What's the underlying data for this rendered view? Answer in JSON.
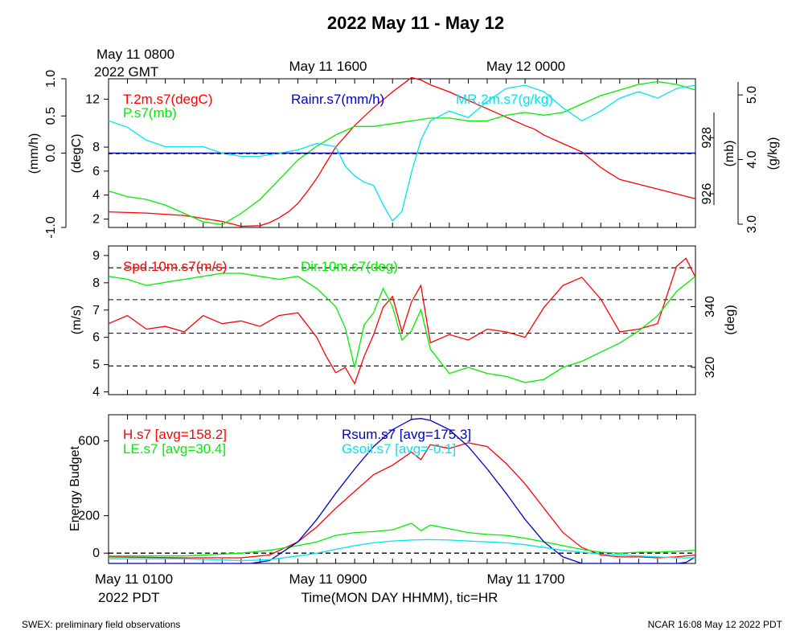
{
  "title": "2022 May 11 - May 12",
  "top_time": {
    "start_line1": "May 11 0800",
    "start_line2": "2022 GMT",
    "mid1": "May 11 1600",
    "mid2": "May 12 0000"
  },
  "bottom_time": {
    "start_line1": "May 11 0100",
    "start_line2": "2022 PDT",
    "mid1": "May 11 0900",
    "mid2": "May 11 1700",
    "axis_label": "Time(MON DAY HHMM), tic=HR"
  },
  "footer": {
    "left": "SWEX: preliminary field observations",
    "right": "NCAR 16:08 May 12 2022 PDT"
  },
  "colors": {
    "red": "#ff0000",
    "green": "#00ee00",
    "blue": "#0000cc",
    "cyan": "#00e5ee",
    "black": "#000000"
  },
  "chart_data": [
    {
      "type": "line",
      "panel": "top",
      "x_unit": "hours since May 11 0100 PDT",
      "xlim": [
        0,
        31
      ],
      "axes": {
        "left_outer": {
          "label": "(mm/h)",
          "ticks": [
            "-1.0",
            "0.0",
            "0.5",
            "1.0"
          ],
          "tick_values": [
            -1,
            0,
            0.5,
            1
          ],
          "ylim": [
            -1,
            1
          ]
        },
        "left_inner": {
          "label": "(degC)",
          "ticks": [
            "2",
            "4",
            "6",
            "8",
            "12"
          ],
          "tick_values": [
            2,
            4,
            6,
            8,
            12
          ],
          "ylim": [
            1.3,
            13.7
          ]
        },
        "right_inner": {
          "label": "(mb)",
          "ticks": [
            "926",
            "928"
          ],
          "tick_values": [
            926,
            928
          ],
          "ylim": [
            924.8,
            930.1
          ]
        },
        "right_outer": {
          "label": "(g/kg)",
          "ticks": [
            "3.0",
            "4.0",
            "5.0"
          ],
          "tick_values": [
            3,
            4,
            5
          ],
          "ylim": [
            2.95,
            5.25
          ]
        }
      },
      "series": [
        {
          "name": "T.2m.s7(degC)",
          "color": "red",
          "axis": "left_inner",
          "x": [
            0,
            2,
            4,
            6,
            7,
            8,
            8.5,
            9,
            9.5,
            10,
            10.5,
            11,
            11.5,
            12,
            13,
            14,
            15,
            16,
            16.5,
            17,
            18,
            19,
            20,
            21,
            22,
            22.5,
            23,
            24,
            25,
            26,
            26.5,
            27,
            28,
            29,
            30,
            31
          ],
          "y": [
            2.6,
            2.5,
            2.3,
            1.8,
            1.4,
            1.45,
            1.7,
            2.1,
            2.6,
            3.3,
            4.3,
            5.4,
            6.7,
            8.0,
            9.8,
            11.3,
            12.6,
            13.8,
            13.6,
            13.2,
            12.6,
            11.9,
            11.2,
            10.5,
            9.8,
            9.5,
            9.0,
            8.3,
            7.6,
            6.3,
            5.8,
            5.3,
            4.9,
            4.5,
            4.1,
            3.7
          ]
        },
        {
          "name": "P.s7(mb)",
          "color": "green",
          "axis": "right_inner",
          "x": [
            0,
            1,
            2,
            3,
            4,
            5,
            6,
            7,
            8,
            9,
            10,
            11,
            12,
            13,
            14,
            15,
            16,
            17,
            18,
            19,
            20,
            21,
            22,
            23,
            24,
            25,
            26,
            27,
            28,
            29,
            30,
            31
          ],
          "y": [
            926.1,
            925.9,
            925.8,
            925.6,
            925.3,
            925.0,
            924.9,
            925.3,
            925.8,
            926.5,
            927.2,
            927.7,
            928.1,
            928.4,
            928.4,
            928.5,
            928.6,
            928.7,
            928.7,
            928.6,
            928.6,
            928.8,
            928.9,
            928.8,
            928.9,
            929.2,
            929.5,
            929.7,
            929.9,
            930.0,
            929.9,
            929.7
          ]
        },
        {
          "name": "Rainr.s7(mm/h)",
          "color": "blue",
          "axis": "left_outer",
          "x": [
            0,
            31
          ],
          "y": [
            0,
            0
          ]
        },
        {
          "name": "MR.2m.s7(g/kg)",
          "color": "cyan",
          "axis": "right_outer",
          "x": [
            0,
            1,
            2,
            3,
            4,
            5,
            6,
            7,
            8,
            9,
            10,
            11,
            12,
            12.5,
            13,
            13.5,
            14,
            14.5,
            15,
            15.5,
            16,
            16.5,
            17,
            18,
            19,
            20,
            21,
            22,
            23,
            24,
            25,
            26,
            27,
            28,
            29,
            30,
            31
          ],
          "y": [
            4.6,
            4.5,
            4.3,
            4.2,
            4.2,
            4.2,
            4.1,
            4.05,
            4.05,
            4.1,
            4.15,
            4.25,
            4.2,
            3.9,
            3.75,
            3.65,
            3.6,
            3.3,
            3.05,
            3.2,
            3.8,
            4.3,
            4.6,
            4.75,
            4.65,
            4.9,
            5.1,
            5.15,
            5.05,
            4.8,
            4.6,
            4.75,
            4.95,
            5.05,
            4.95,
            5.1,
            5.15
          ]
        }
      ]
    },
    {
      "type": "line",
      "panel": "middle",
      "x_unit": "hours since May 11 0100 PDT",
      "xlim": [
        0,
        31
      ],
      "axes": {
        "left": {
          "label": "(m/s)",
          "ticks": [
            "4",
            "5",
            "6",
            "7",
            "8",
            "9"
          ],
          "tick_values": [
            4,
            5,
            6,
            7,
            8,
            9
          ],
          "ylim": [
            3.9,
            9.35
          ]
        },
        "right": {
          "label": "(deg)",
          "ticks": [
            "320",
            "340"
          ],
          "tick_values": [
            320,
            340
          ],
          "ylim": [
            311,
            360
          ]
        }
      },
      "reference_lines": [
        4.95,
        6.15,
        7.38,
        8.55
      ],
      "series": [
        {
          "name": "Spd.10m.s7(m/s)",
          "color": "red",
          "axis": "left",
          "x": [
            0,
            1,
            2,
            3,
            4,
            5,
            6,
            7,
            8,
            9,
            10,
            11,
            11.5,
            12,
            12.5,
            13,
            13.5,
            14,
            14.5,
            15,
            15.5,
            16,
            16.5,
            17,
            18,
            19,
            20,
            21,
            22,
            23,
            24,
            25,
            26,
            27,
            28,
            29,
            30,
            30.5,
            31
          ],
          "y": [
            6.5,
            6.8,
            6.3,
            6.4,
            6.2,
            6.8,
            6.5,
            6.6,
            6.4,
            6.8,
            6.9,
            6.0,
            5.3,
            4.7,
            4.9,
            4.3,
            5.3,
            6.1,
            7.1,
            7.5,
            6.2,
            7.3,
            7.9,
            5.8,
            6.1,
            5.9,
            6.3,
            6.2,
            6.0,
            7.1,
            7.9,
            8.2,
            7.4,
            6.2,
            6.3,
            6.5,
            8.6,
            8.9,
            8.2
          ]
        },
        {
          "name": "Dir.10m.s7(deg)",
          "color": "green",
          "axis": "right",
          "x": [
            0,
            1,
            2,
            3,
            4,
            5,
            6,
            7,
            8,
            9,
            10,
            11,
            12,
            12.5,
            13,
            13.5,
            14,
            14.5,
            15,
            15.5,
            16,
            16.5,
            17,
            18,
            19,
            20,
            21,
            22,
            23,
            24,
            25,
            26,
            27,
            28,
            29,
            30,
            31
          ],
          "y": [
            350,
            349,
            347,
            348,
            349,
            350,
            351,
            351,
            350,
            349,
            350,
            346,
            340,
            333,
            320,
            334,
            338,
            346,
            340,
            329,
            332,
            339,
            326,
            318,
            320,
            318,
            317,
            315,
            316,
            320,
            322,
            325,
            328,
            332,
            337,
            345,
            350
          ]
        }
      ]
    },
    {
      "type": "line",
      "panel": "bottom",
      "x_unit": "hours since May 11 0100 PDT",
      "xlim": [
        0,
        31
      ],
      "ylabel": "Energy Budget",
      "ylim": [
        -55,
        740
      ],
      "ticks": [
        "0",
        "200",
        "600"
      ],
      "tick_values": [
        0,
        200,
        600
      ],
      "reference_lines": [
        0
      ],
      "series": [
        {
          "name": "H.s7",
          "avg_label": "[avg=158.2]",
          "color": "red",
          "x": [
            0,
            4,
            7,
            8.5,
            10,
            11,
            12,
            13,
            14,
            15,
            16,
            16.5,
            17,
            18,
            19,
            20,
            21,
            22,
            23,
            24,
            25,
            26,
            27,
            28,
            29,
            30,
            31
          ],
          "y": [
            -20,
            -25,
            -25,
            -10,
            60,
            140,
            240,
            330,
            420,
            470,
            540,
            500,
            580,
            560,
            590,
            570,
            480,
            370,
            240,
            110,
            30,
            -10,
            -20,
            -20,
            -25,
            -20,
            -10
          ]
        },
        {
          "name": "LE.s7",
          "avg_label": "[avg=30.4]",
          "color": "green",
          "x": [
            0,
            4,
            7,
            8.5,
            10,
            11,
            12,
            13,
            14,
            15,
            16,
            16.5,
            17,
            18,
            19,
            20,
            21,
            22,
            23,
            24,
            25,
            26,
            27,
            28,
            29,
            30,
            31
          ],
          "y": [
            -15,
            -15,
            0,
            15,
            40,
            60,
            95,
            110,
            115,
            125,
            160,
            120,
            150,
            130,
            110,
            100,
            95,
            80,
            60,
            40,
            20,
            5,
            0,
            5,
            5,
            10,
            15
          ]
        },
        {
          "name": "Rsum.s7",
          "avg_label": "[avg=175.3]",
          "color": "blue",
          "x": [
            0,
            6,
            7.5,
            8.5,
            10,
            11,
            12,
            13,
            14,
            15,
            16,
            16.5,
            17,
            18,
            19,
            20,
            21,
            22,
            23,
            24,
            25,
            26,
            27,
            28,
            29,
            30,
            30.5,
            31
          ],
          "y": [
            -55,
            -55,
            -55,
            -40,
            60,
            180,
            320,
            450,
            570,
            660,
            715,
            720,
            710,
            660,
            570,
            450,
            320,
            180,
            60,
            -20,
            -55,
            -55,
            -55,
            -55,
            -55,
            -55,
            -50,
            -20
          ]
        },
        {
          "name": "Gsoil.s7",
          "avg_label": "[avg=-0.1]",
          "color": "cyan",
          "x": [
            0,
            4,
            7,
            8.5,
            10,
            11,
            12,
            13,
            14,
            15,
            16,
            17,
            18,
            19,
            20,
            21,
            22,
            23,
            24,
            25,
            26,
            27,
            28,
            29,
            30,
            31
          ],
          "y": [
            -30,
            -30,
            -40,
            -35,
            -15,
            0,
            20,
            40,
            55,
            65,
            70,
            72,
            70,
            65,
            60,
            55,
            45,
            30,
            15,
            5,
            -5,
            -10,
            -15,
            -20,
            -25,
            -25
          ]
        }
      ]
    }
  ]
}
